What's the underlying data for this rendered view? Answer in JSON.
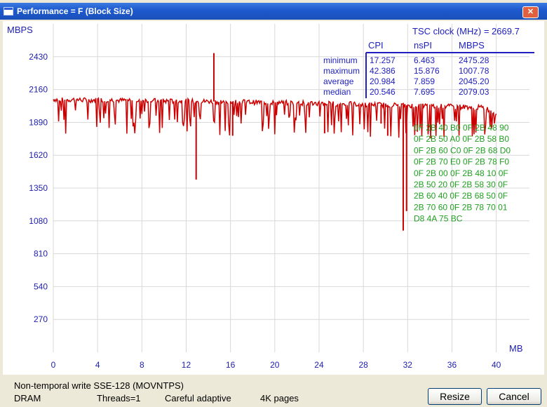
{
  "window": {
    "title": "Performance = F (Block Size)",
    "close_glyph": "✕"
  },
  "chart_data": {
    "type": "line",
    "ylabel": "MBPS",
    "xlabel": "MB",
    "y_ticks": [
      270,
      540,
      810,
      1080,
      1350,
      1620,
      1890,
      2160,
      2430
    ],
    "x_ticks": [
      0,
      4,
      8,
      12,
      16,
      20,
      24,
      28,
      32,
      36,
      40
    ],
    "xlim": [
      0,
      43
    ],
    "ylim": [
      0,
      2700
    ],
    "grid": true,
    "series_color": "#cc0000",
    "series": [
      {
        "x": [
          0,
          1,
          2,
          3,
          4,
          5,
          6,
          7,
          8,
          9,
          10,
          11,
          12,
          13,
          14,
          15,
          16,
          17,
          18,
          19,
          20,
          21,
          22,
          23,
          24,
          25,
          26,
          27,
          28,
          29,
          30,
          31,
          32,
          33,
          34,
          35,
          36,
          37,
          38,
          39,
          40
        ],
        "values": [
          2080,
          2075,
          2078,
          2072,
          2074,
          2076,
          2070,
          2073,
          2071,
          2068,
          2066,
          2064,
          2065,
          2062,
          2063,
          2060,
          2058,
          2060,
          2056,
          2055,
          2054,
          2052,
          2050,
          2049,
          2047,
          2045,
          2042,
          2040,
          2038,
          2036,
          2034,
          2032,
          2030,
          2028,
          2025,
          2022,
          2020,
          2018,
          2015,
          2010,
          1960
        ]
      }
    ],
    "spikes": [
      {
        "x": 12.9,
        "value": 1420
      },
      {
        "x": 14.5,
        "value": 2460
      },
      {
        "x": 31.6,
        "value": 1000
      },
      {
        "x": 31.9,
        "value": 1160
      },
      {
        "x": 30.2,
        "value": 1780
      },
      {
        "x": 29.6,
        "value": 1880
      },
      {
        "x": 16.2,
        "value": 1780
      },
      {
        "x": 24.5,
        "value": 1800
      }
    ]
  },
  "stats": {
    "tsc_label": "TSC clock (MHz)  = 2669.7",
    "headers": [
      "CPI",
      "nsPI",
      "MBPS"
    ],
    "rows": [
      {
        "label": "minimum",
        "cpi": "17.257",
        "nspi": "6.463",
        "mbps": "2475.28"
      },
      {
        "label": "maximum",
        "cpi": "42.386",
        "nspi": "15.876",
        "mbps": "1007.78"
      },
      {
        "label": "average",
        "cpi": "20.984",
        "nspi": "7.859",
        "mbps": "2045.20"
      },
      {
        "label": "median",
        "cpi": "20.546",
        "nspi": "7.695",
        "mbps": "2079.03"
      }
    ]
  },
  "hex_dump": [
    "0F  2B  40  B0  0F  2B  48  90",
    "0F  2B  50  A0  0F  2B  58  B0",
    "0F  2B  60  C0  0F  2B  68  D0",
    "0F  2B  70  E0  0F  2B  78  F0",
    "0F  2B  00  0F  2B  48  10  0F",
    "2B  50  20  0F  2B  58  30  0F",
    "2B  60  40  0F  2B  68  50  0F",
    "2B  70  60  0F  2B  78  70  01",
    "D8  4A  75  BC"
  ],
  "status": {
    "line1": "Non-temporal write SSE-128 (MOVNTPS)",
    "memory": "DRAM",
    "threads": "Threads=1",
    "mode": "Careful adaptive",
    "pages": "4K pages"
  },
  "buttons": {
    "resize": "Resize",
    "cancel": "Cancel"
  },
  "colors": {
    "axis_text": "#2020b0",
    "stats_text": "#2020c0",
    "hex_text": "#20a020",
    "stats_line": "#2020c0"
  }
}
